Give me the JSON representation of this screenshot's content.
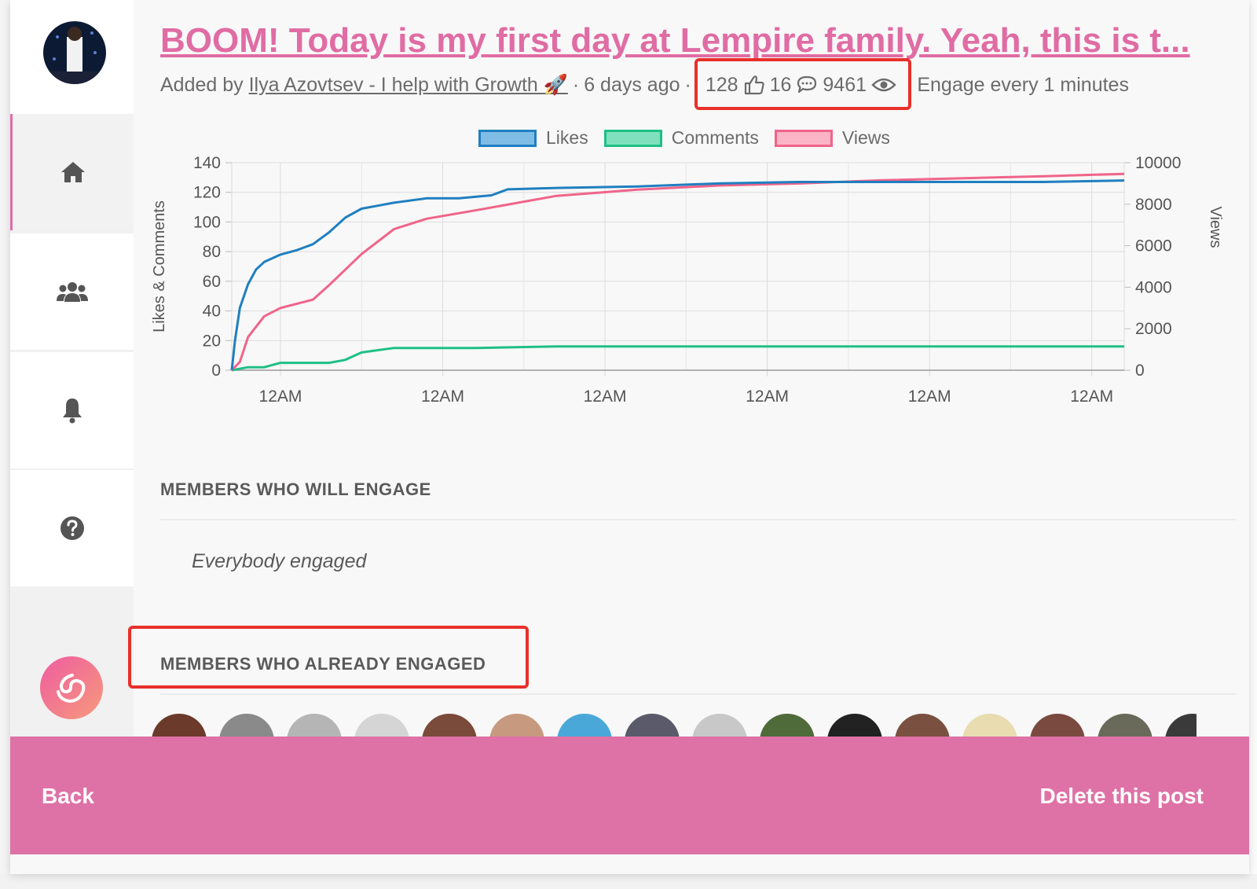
{
  "post": {
    "title": "BOOM! Today is my first day at Lempire family. Yeah, this is t...",
    "added_by_prefix": "Added by",
    "author": "Ilya Azovtsev - I help with Growth 🚀",
    "age": "6 days ago",
    "likes": "128",
    "comments": "16",
    "views": "9461",
    "separator": "·",
    "engage_text": "Engage every 1 minutes"
  },
  "icons": {
    "sidebar": [
      "home-icon",
      "users-icon",
      "bell-icon",
      "help-icon"
    ],
    "stats": [
      "thumbs-up-icon",
      "comment-icon",
      "eye-icon"
    ],
    "logo": "spiral-logo-icon"
  },
  "colors": {
    "accent": "#e06ca4",
    "footer": "#de72a6",
    "highlight": "#e8302a",
    "likes": "#1f7fc0",
    "comments": "#1fbf86",
    "views": "#f0648a"
  },
  "chart_data": {
    "type": "line",
    "legend": [
      "Likes",
      "Comments",
      "Views"
    ],
    "ylabel_left": "Likes & Comments",
    "ylabel_right": "Views",
    "left_ticks": [
      "0",
      "20",
      "40",
      "60",
      "80",
      "100",
      "120",
      "140"
    ],
    "right_ticks": [
      "0",
      "2000",
      "4000",
      "6000",
      "8000",
      "10000"
    ],
    "ylim_left": [
      0,
      140
    ],
    "ylim_right": [
      0,
      10000
    ],
    "x_ticks": [
      "12AM",
      "12AM",
      "12AM",
      "12AM",
      "12AM",
      "12AM"
    ],
    "x_tick_positions_days": [
      0.3,
      1.3,
      2.3,
      3.3,
      4.3,
      5.3
    ],
    "xlim_days": [
      0,
      5.5
    ],
    "grid": true,
    "legend_position": "top-center",
    "series": [
      {
        "name": "Likes",
        "axis": "left",
        "x": [
          0,
          0.02,
          0.05,
          0.1,
          0.15,
          0.2,
          0.3,
          0.4,
          0.5,
          0.6,
          0.7,
          0.8,
          0.9,
          1.0,
          1.2,
          1.4,
          1.6,
          1.7,
          2.0,
          2.5,
          3.0,
          3.5,
          4.0,
          5.0,
          5.5
        ],
        "y": [
          0,
          20,
          42,
          58,
          68,
          73,
          78,
          81,
          85,
          93,
          103,
          109,
          111,
          113,
          116,
          116,
          118,
          122,
          123,
          124,
          126,
          127,
          127,
          127,
          128
        ]
      },
      {
        "name": "Comments",
        "axis": "left",
        "x": [
          0,
          0.1,
          0.2,
          0.3,
          0.5,
          0.6,
          0.7,
          0.8,
          1.0,
          1.5,
          2.0,
          3.0,
          4.0,
          5.0,
          5.5
        ],
        "y": [
          0,
          2,
          2,
          5,
          5,
          5,
          7,
          12,
          15,
          15,
          16,
          16,
          16,
          16,
          16
        ]
      },
      {
        "name": "Views",
        "axis": "right",
        "x": [
          0,
          0.05,
          0.1,
          0.2,
          0.3,
          0.4,
          0.5,
          0.6,
          0.8,
          1.0,
          1.2,
          1.5,
          2.0,
          2.5,
          3.0,
          3.5,
          4.0,
          5.0,
          5.5
        ],
        "y": [
          0,
          400,
          1600,
          2600,
          3000,
          3200,
          3400,
          4100,
          5600,
          6800,
          7300,
          7700,
          8400,
          8700,
          8900,
          9000,
          9150,
          9350,
          9461
        ]
      }
    ]
  },
  "sections": {
    "will_engage": "MEMBERS WHO WILL ENGAGE",
    "will_engage_empty": "Everybody engaged",
    "already_engaged": "MEMBERS WHO ALREADY ENGAGED"
  },
  "footer": {
    "back": "Back",
    "delete": "Delete this post"
  }
}
